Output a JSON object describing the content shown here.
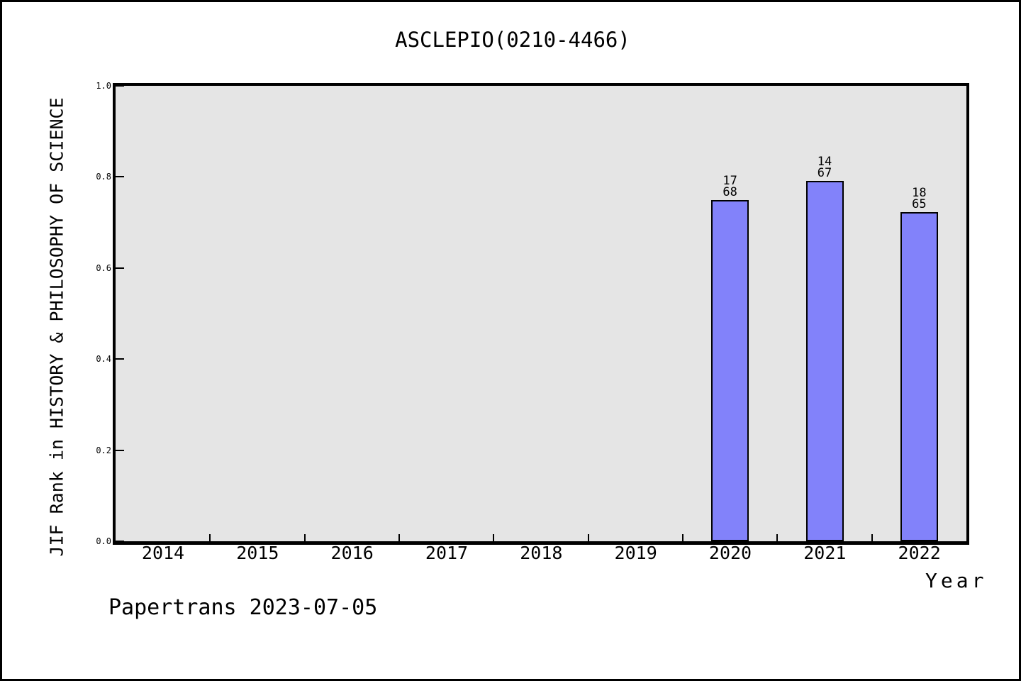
{
  "title": "ASCLEPIO(0210-4466)",
  "footer": {
    "text": "Papertrans 2023-07-05"
  },
  "chart_data": {
    "type": "bar",
    "title": "ASCLEPIO(0210-4466)",
    "xlabel": "Year",
    "ylabel": "JIF Rank in HISTORY & PHILOSOPHY OF SCIENCE",
    "categories": [
      "2014",
      "2015",
      "2016",
      "2017",
      "2018",
      "2019",
      "2020",
      "2021",
      "2022"
    ],
    "bars": [
      {
        "category": "2020",
        "rank": 17,
        "total": 68,
        "value": 0.75
      },
      {
        "category": "2021",
        "rank": 14,
        "total": 67,
        "value": 0.791
      },
      {
        "category": "2022",
        "rank": 18,
        "total": 65,
        "value": 0.723
      }
    ],
    "ylim": [
      0.0,
      1.0
    ],
    "ytick_labels": [
      "0.0",
      "0.2",
      "0.4",
      "0.6",
      "0.8",
      "1.0"
    ],
    "grid": false,
    "legend": null,
    "colors": {
      "bar_fill": "#8282fa",
      "bar_edge": "#000000",
      "plot_bg": "#e5e5e5",
      "frame": "#000000",
      "page_bg": "#ffffff"
    }
  }
}
